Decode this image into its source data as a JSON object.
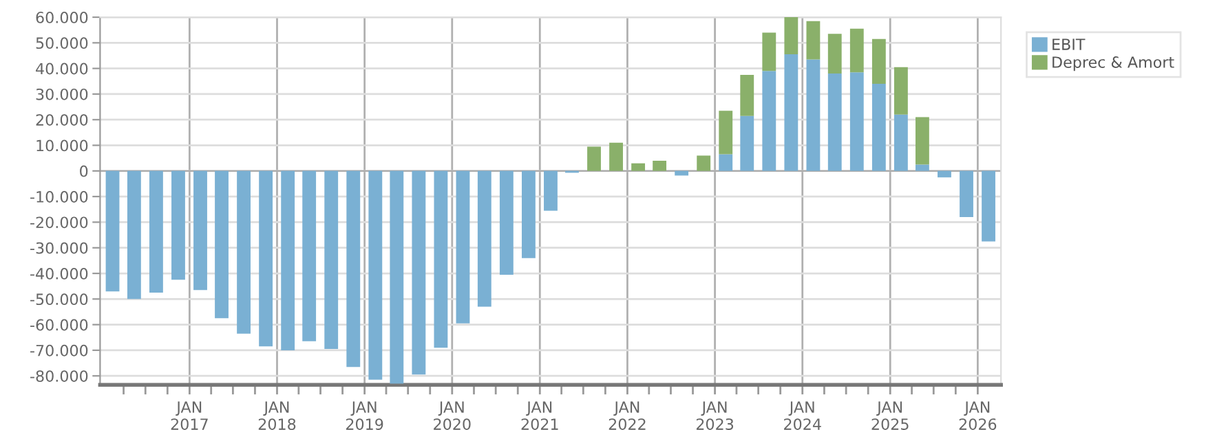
{
  "chart_data": {
    "type": "bar",
    "stacked": true,
    "x": [
      "2016-02-15",
      "2016-05-15",
      "2016-08-15",
      "2016-11-15",
      "2017-02-15",
      "2017-05-15",
      "2017-08-15",
      "2017-11-15",
      "2018-02-15",
      "2018-05-15",
      "2018-08-15",
      "2018-11-15",
      "2019-02-15",
      "2019-05-15",
      "2019-08-15",
      "2019-11-15",
      "2020-02-15",
      "2020-05-15",
      "2020-08-15",
      "2020-11-15",
      "2021-02-15",
      "2021-05-15",
      "2021-08-15",
      "2021-11-15",
      "2022-02-15",
      "2022-05-15",
      "2022-08-15",
      "2022-11-15",
      "2023-02-15",
      "2023-05-15",
      "2023-08-15",
      "2023-11-15",
      "2024-02-15",
      "2024-05-15",
      "2024-08-15",
      "2024-11-15",
      "2025-02-15",
      "2025-05-15",
      "2025-08-15",
      "2025-11-15",
      "2026-02-15"
    ],
    "series": [
      {
        "name": "EBIT",
        "color": "#7ab0d3",
        "values": [
          -47000,
          -50000,
          -47500,
          -42500,
          -46500,
          -57500,
          -63500,
          -68500,
          -70000,
          -66500,
          -69500,
          -76500,
          -81500,
          -83000,
          -79500,
          -69000,
          -59500,
          -53000,
          -40500,
          -34000,
          -15500,
          -700,
          0,
          0,
          0,
          0,
          -1800,
          0,
          6500,
          21500,
          39000,
          45500,
          43500,
          38000,
          38500,
          34000,
          22000,
          2500,
          -2500,
          -18000,
          -27500
        ]
      },
      {
        "name": "Deprec & Amort",
        "color": "#8ab06a",
        "values": [
          0,
          0,
          0,
          0,
          0,
          0,
          0,
          0,
          0,
          0,
          0,
          0,
          0,
          0,
          0,
          0,
          0,
          0,
          0,
          0,
          0,
          0,
          9500,
          11000,
          3000,
          4000,
          0,
          6000,
          17000,
          16000,
          15000,
          14500,
          15000,
          15500,
          17000,
          17500,
          18500,
          18500,
          0,
          0,
          0
        ]
      }
    ],
    "xlim": [
      "2015-12-25",
      "2026-04-08"
    ],
    "xticks": [
      {
        "value": "2016-04-01",
        "label": null
      },
      {
        "value": "2016-07-01",
        "label": null
      },
      {
        "value": "2016-10-01",
        "label": null
      },
      {
        "value": "2017-01-01",
        "label": "JAN\n2017"
      },
      {
        "value": "2017-04-01",
        "label": null
      },
      {
        "value": "2017-07-01",
        "label": null
      },
      {
        "value": "2017-10-01",
        "label": null
      },
      {
        "value": "2018-01-01",
        "label": "JAN\n2018"
      },
      {
        "value": "2018-04-01",
        "label": null
      },
      {
        "value": "2018-07-01",
        "label": null
      },
      {
        "value": "2018-10-01",
        "label": null
      },
      {
        "value": "2019-01-01",
        "label": "JAN\n2019"
      },
      {
        "value": "2019-04-01",
        "label": null
      },
      {
        "value": "2019-07-01",
        "label": null
      },
      {
        "value": "2019-10-01",
        "label": null
      },
      {
        "value": "2020-01-01",
        "label": "JAN\n2020"
      },
      {
        "value": "2020-04-01",
        "label": null
      },
      {
        "value": "2020-07-01",
        "label": null
      },
      {
        "value": "2020-10-01",
        "label": null
      },
      {
        "value": "2021-01-01",
        "label": "JAN\n2021"
      },
      {
        "value": "2021-04-01",
        "label": null
      },
      {
        "value": "2021-07-01",
        "label": null
      },
      {
        "value": "2021-10-01",
        "label": null
      },
      {
        "value": "2022-01-01",
        "label": "JAN\n2022"
      },
      {
        "value": "2022-04-01",
        "label": null
      },
      {
        "value": "2022-07-01",
        "label": null
      },
      {
        "value": "2022-10-01",
        "label": null
      },
      {
        "value": "2023-01-01",
        "label": "JAN\n2023"
      },
      {
        "value": "2023-04-01",
        "label": null
      },
      {
        "value": "2023-07-01",
        "label": null
      },
      {
        "value": "2023-10-01",
        "label": null
      },
      {
        "value": "2024-01-01",
        "label": "JAN\n2024"
      },
      {
        "value": "2024-04-01",
        "label": null
      },
      {
        "value": "2024-07-01",
        "label": null
      },
      {
        "value": "2024-10-01",
        "label": null
      },
      {
        "value": "2025-01-01",
        "label": "JAN\n2025"
      },
      {
        "value": "2025-04-01",
        "label": null
      },
      {
        "value": "2025-07-01",
        "label": null
      },
      {
        "value": "2025-10-01",
        "label": null
      },
      {
        "value": "2026-01-01",
        "label": "JAN\n2026"
      }
    ],
    "ylim": [
      -83500,
      60000
    ],
    "yticks": [
      {
        "value": -80000,
        "label": "-80.000"
      },
      {
        "value": -70000,
        "label": "-70.000"
      },
      {
        "value": -60000,
        "label": "-60.000"
      },
      {
        "value": -50000,
        "label": "-50.000"
      },
      {
        "value": -40000,
        "label": "-40.000"
      },
      {
        "value": -30000,
        "label": "-30.000"
      },
      {
        "value": -20000,
        "label": "-20.000"
      },
      {
        "value": -10000,
        "label": "-10.000"
      },
      0,
      {
        "value": 10000,
        "label": "10.000"
      },
      {
        "value": 20000,
        "label": "20.000"
      },
      {
        "value": 30000,
        "label": "30.000"
      },
      {
        "value": 40000,
        "label": "40.000"
      },
      {
        "value": 50000,
        "label": "50.000"
      },
      {
        "value": 60000,
        "label": "60.000"
      }
    ],
    "grid": true,
    "legend": "top right"
  }
}
